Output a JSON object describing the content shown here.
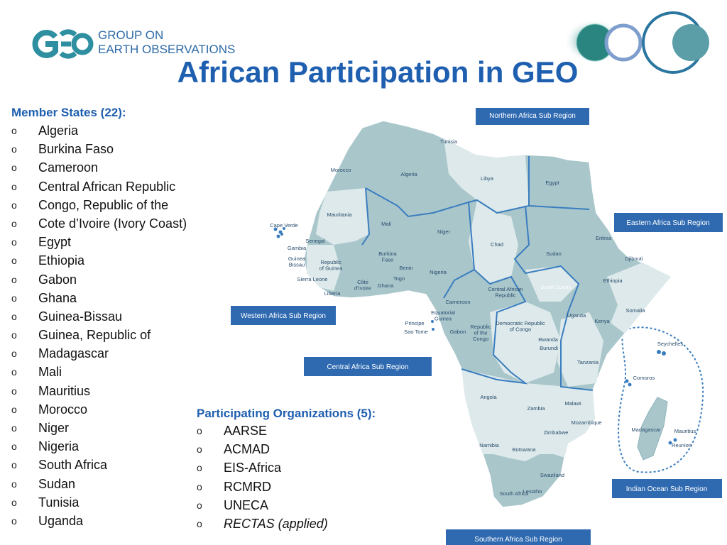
{
  "logo": {
    "line1": "GROUP ON",
    "line2": "EARTH OBSERVATIONS",
    "primary_color": "#2e8fa0",
    "text_color": "#2e6aa6"
  },
  "title": "African Participation in GEO",
  "members": {
    "heading": "Member States (22):",
    "items": [
      "Algeria",
      "Burkina Faso",
      "Cameroon",
      "Central African Republic",
      "Congo, Republic of the",
      "Cote d’Ivoire (Ivory Coast)",
      "Egypt",
      "Ethiopia",
      "Gabon",
      "Ghana",
      "Guinea-Bissau",
      "Guinea, Republic of",
      "Madagascar",
      "Mali",
      "Mauritius",
      "Morocco",
      "Niger",
      "Nigeria",
      "South Africa",
      "Sudan",
      "Tunisia",
      "Uganda"
    ]
  },
  "orgs": {
    "heading": "Participating Organizations (5):",
    "items": [
      "AARSE",
      "ACMAD",
      "EIS-Africa",
      "RCMRD",
      "UNECA"
    ],
    "applied": "RECTAS (applied)"
  },
  "bullet": "o",
  "map": {
    "regions": {
      "northern": "Northern Africa Sub Region",
      "eastern": "Eastern Africa Sub Region",
      "western": "Western Africa Sub Region",
      "central": "Central Africa Sub Region",
      "indian": "Indian Ocean Sub Region",
      "southern": "Southern Africa Sub Region"
    },
    "countries": {
      "tunisia": "Tunisia",
      "morocco": "Morocco",
      "algeria": "Algeria",
      "libya": "Libya",
      "egypt": "Egypt",
      "mauritania": "Mauritania",
      "mali": "Mali",
      "niger": "Niger",
      "chad": "Chad",
      "sudan": "Sudan",
      "eritrea": "Eritrea",
      "djibouti": "Djibouti",
      "ethiopia": "Ethiopia",
      "south_sudan": "South Sudan",
      "somalia": "Somalia",
      "cape_verde": "Cape Verde",
      "senegal": "Senegal",
      "gambia": "Gambia",
      "guinea_bissau": "Guinea Bissau",
      "rep_guinea": "Republic of Guinea",
      "sierra_leone": "Sierra Leone",
      "liberia": "Liberia",
      "cote": "Côte d’Ivoire",
      "burkina": "Burkina Faso",
      "ghana": "Ghana",
      "togo": "Togo",
      "benin": "Benin",
      "nigeria": "Nigeria",
      "car": "Central African Republic",
      "cameroon": "Cameroon",
      "eq_guinea": "Equatorial Guinea",
      "principe": "Principe",
      "sao_tome": "Sao Tome",
      "gabon": "Gabon",
      "rep_congo": "Republic of the Congo",
      "drc": "Democratic Republic of Congo",
      "uganda": "Uganda",
      "kenya": "Kenya",
      "rwanda": "Rwanda",
      "burundi": "Burundi",
      "tanzania": "Tanzania",
      "angola": "Angola",
      "zambia": "Zambia",
      "malawi": "Malawi",
      "mozambique": "Mozambique",
      "zimbabwe": "Zimbabwe",
      "namibia": "Namibia",
      "botswana": "Botswana",
      "swaziland": "Swaziland",
      "lesotho": "Lesotho",
      "south_africa": "South Africa",
      "seychelles": "Seychelles",
      "comoros": "Comoros",
      "madagascar": "Madagascar",
      "mauritius": "Mauritius",
      "reunion": "Reunion"
    },
    "colors": {
      "member": "#a9c6cb",
      "non_member": "#dde9ea",
      "region_border": "#3a7dbf",
      "label_box": "#2f6ab1"
    }
  }
}
